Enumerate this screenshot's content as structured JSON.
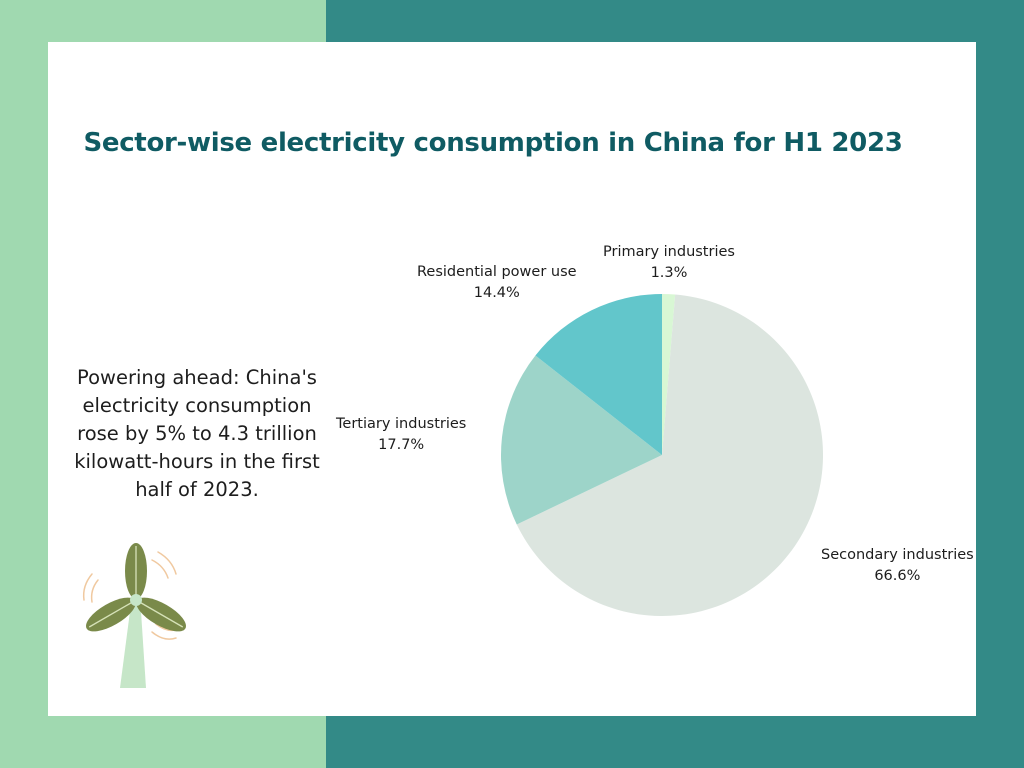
{
  "description": "Powering ahead: China's electricity consumption rose by 5% to 4.3 trillion kilowatt-hours in the first half of 2023.",
  "colors": {
    "background_left": "#a0d9b0",
    "background_right": "#338a87",
    "card": "#ffffff",
    "title": "#0f5b63"
  },
  "chart_data": {
    "type": "pie",
    "title": "Sector-wise electricity consumption in China for H1 2023",
    "start_angle_deg": 0,
    "direction": "clockwise",
    "legend": "none",
    "slices": [
      {
        "name": "Primary industries",
        "value": 1.3,
        "label": "1.3%",
        "color": "#d8f7d4"
      },
      {
        "name": "Secondary industries",
        "value": 66.6,
        "label": "66.6%",
        "color": "#dce5df"
      },
      {
        "name": "Tertiary industries",
        "value": 17.7,
        "label": "17.7%",
        "color": "#9dd4c9"
      },
      {
        "name": "Residential power use",
        "value": 14.4,
        "label": "14.4%",
        "color": "#62c6cb"
      }
    ]
  },
  "decoration_icon": "wind-turbine-icon"
}
